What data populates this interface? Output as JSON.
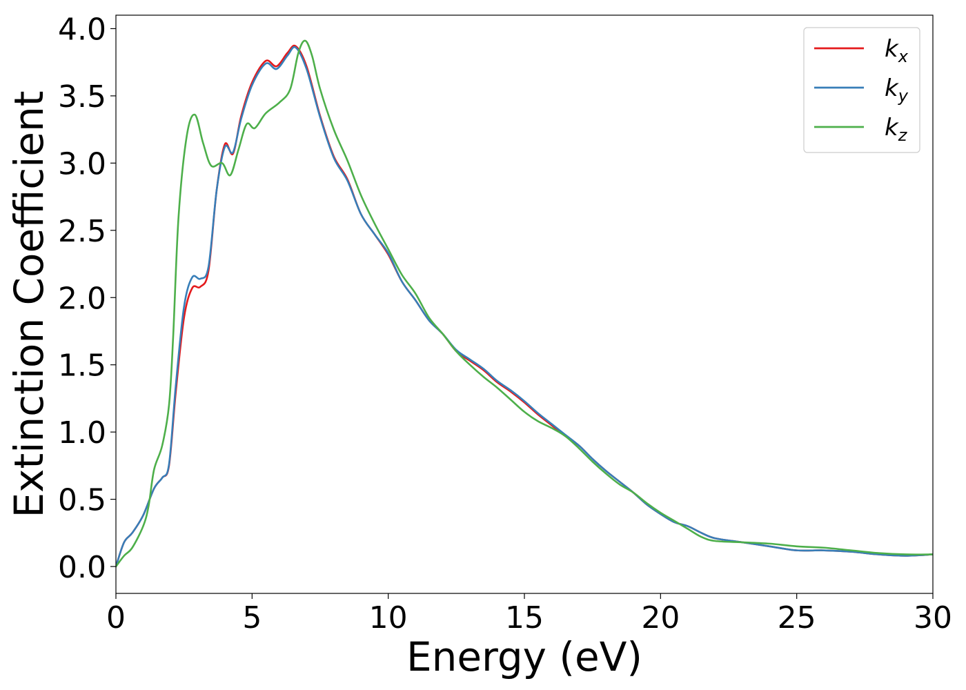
{
  "chart_data": {
    "type": "line",
    "xlabel": "Energy (eV)",
    "ylabel": "Extinction Coefficient",
    "xlim": [
      0,
      30
    ],
    "ylim": [
      -0.2,
      4.1
    ],
    "x_ticks": [
      "0",
      "5",
      "10",
      "15",
      "20",
      "25",
      "30"
    ],
    "y_ticks": [
      "0.0",
      "0.5",
      "1.0",
      "1.5",
      "2.0",
      "2.5",
      "3.0",
      "3.5",
      "4.0"
    ],
    "grid": false,
    "legend_position": "top-right",
    "series": [
      {
        "name": "k",
        "subscript": "x",
        "color": "#e41a1c",
        "points": [
          [
            0,
            0
          ],
          [
            0.3,
            0.18
          ],
          [
            0.6,
            0.25
          ],
          [
            1.0,
            0.38
          ],
          [
            1.4,
            0.58
          ],
          [
            1.7,
            0.66
          ],
          [
            1.95,
            0.75
          ],
          [
            2.2,
            1.3
          ],
          [
            2.5,
            1.85
          ],
          [
            2.8,
            2.07
          ],
          [
            3.1,
            2.08
          ],
          [
            3.4,
            2.2
          ],
          [
            3.7,
            2.8
          ],
          [
            4.0,
            3.14
          ],
          [
            4.3,
            3.07
          ],
          [
            4.6,
            3.35
          ],
          [
            5.0,
            3.6
          ],
          [
            5.5,
            3.76
          ],
          [
            5.9,
            3.72
          ],
          [
            6.3,
            3.82
          ],
          [
            6.6,
            3.87
          ],
          [
            7.0,
            3.72
          ],
          [
            7.5,
            3.35
          ],
          [
            8.0,
            3.05
          ],
          [
            8.5,
            2.88
          ],
          [
            9.0,
            2.62
          ],
          [
            9.5,
            2.47
          ],
          [
            10.0,
            2.32
          ],
          [
            10.5,
            2.12
          ],
          [
            11.0,
            1.98
          ],
          [
            11.5,
            1.83
          ],
          [
            12.0,
            1.73
          ],
          [
            12.5,
            1.6
          ],
          [
            13.0,
            1.53
          ],
          [
            13.5,
            1.46
          ],
          [
            14.0,
            1.37
          ],
          [
            14.5,
            1.3
          ],
          [
            15.0,
            1.22
          ],
          [
            15.5,
            1.13
          ],
          [
            16.0,
            1.05
          ],
          [
            16.5,
            0.97
          ],
          [
            17.0,
            0.9
          ],
          [
            17.5,
            0.8
          ],
          [
            18.0,
            0.71
          ],
          [
            18.5,
            0.63
          ],
          [
            19.0,
            0.55
          ],
          [
            19.5,
            0.46
          ],
          [
            20.0,
            0.39
          ],
          [
            20.5,
            0.33
          ],
          [
            21.0,
            0.3
          ],
          [
            21.5,
            0.25
          ],
          [
            22.0,
            0.21
          ],
          [
            23.0,
            0.18
          ],
          [
            24.0,
            0.15
          ],
          [
            25.0,
            0.12
          ],
          [
            26.0,
            0.12
          ],
          [
            27.0,
            0.11
          ],
          [
            28.0,
            0.09
          ],
          [
            29.0,
            0.08
          ],
          [
            30.0,
            0.09
          ]
        ]
      },
      {
        "name": "k",
        "subscript": "y",
        "color": "#377eb8",
        "points": [
          [
            0,
            0
          ],
          [
            0.3,
            0.18
          ],
          [
            0.6,
            0.25
          ],
          [
            1.0,
            0.38
          ],
          [
            1.4,
            0.58
          ],
          [
            1.7,
            0.66
          ],
          [
            1.95,
            0.76
          ],
          [
            2.2,
            1.35
          ],
          [
            2.5,
            1.93
          ],
          [
            2.8,
            2.15
          ],
          [
            3.1,
            2.14
          ],
          [
            3.4,
            2.23
          ],
          [
            3.7,
            2.8
          ],
          [
            4.0,
            3.12
          ],
          [
            4.3,
            3.08
          ],
          [
            4.6,
            3.33
          ],
          [
            5.0,
            3.58
          ],
          [
            5.5,
            3.74
          ],
          [
            5.9,
            3.7
          ],
          [
            6.3,
            3.8
          ],
          [
            6.6,
            3.86
          ],
          [
            7.0,
            3.7
          ],
          [
            7.5,
            3.34
          ],
          [
            8.0,
            3.04
          ],
          [
            8.5,
            2.87
          ],
          [
            9.0,
            2.62
          ],
          [
            9.5,
            2.47
          ],
          [
            10.0,
            2.33
          ],
          [
            10.5,
            2.12
          ],
          [
            11.0,
            1.98
          ],
          [
            11.5,
            1.83
          ],
          [
            12.0,
            1.73
          ],
          [
            12.5,
            1.61
          ],
          [
            13.0,
            1.54
          ],
          [
            13.5,
            1.47
          ],
          [
            14.0,
            1.38
          ],
          [
            14.5,
            1.31
          ],
          [
            15.0,
            1.23
          ],
          [
            15.5,
            1.14
          ],
          [
            16.0,
            1.06
          ],
          [
            16.5,
            0.98
          ],
          [
            17.0,
            0.9
          ],
          [
            17.5,
            0.8
          ],
          [
            18.0,
            0.71
          ],
          [
            18.5,
            0.63
          ],
          [
            19.0,
            0.55
          ],
          [
            19.5,
            0.46
          ],
          [
            20.0,
            0.39
          ],
          [
            20.5,
            0.33
          ],
          [
            21.0,
            0.3
          ],
          [
            21.5,
            0.25
          ],
          [
            22.0,
            0.21
          ],
          [
            23.0,
            0.18
          ],
          [
            24.0,
            0.15
          ],
          [
            25.0,
            0.12
          ],
          [
            26.0,
            0.12
          ],
          [
            27.0,
            0.11
          ],
          [
            28.0,
            0.09
          ],
          [
            29.0,
            0.08
          ],
          [
            30.0,
            0.09
          ]
        ]
      },
      {
        "name": "k",
        "subscript": "z",
        "color": "#4daf4a",
        "points": [
          [
            0,
            0
          ],
          [
            0.3,
            0.08
          ],
          [
            0.6,
            0.14
          ],
          [
            1.0,
            0.3
          ],
          [
            1.2,
            0.45
          ],
          [
            1.4,
            0.72
          ],
          [
            1.7,
            0.9
          ],
          [
            1.95,
            1.2
          ],
          [
            2.1,
            1.7
          ],
          [
            2.3,
            2.6
          ],
          [
            2.6,
            3.2
          ],
          [
            2.9,
            3.36
          ],
          [
            3.2,
            3.15
          ],
          [
            3.5,
            2.98
          ],
          [
            3.9,
            3.0
          ],
          [
            4.2,
            2.91
          ],
          [
            4.5,
            3.1
          ],
          [
            4.8,
            3.29
          ],
          [
            5.1,
            3.26
          ],
          [
            5.5,
            3.37
          ],
          [
            6.0,
            3.45
          ],
          [
            6.4,
            3.55
          ],
          [
            6.7,
            3.82
          ],
          [
            6.95,
            3.91
          ],
          [
            7.2,
            3.8
          ],
          [
            7.5,
            3.55
          ],
          [
            8.0,
            3.25
          ],
          [
            8.5,
            3.02
          ],
          [
            9.0,
            2.76
          ],
          [
            9.5,
            2.55
          ],
          [
            10.0,
            2.36
          ],
          [
            10.5,
            2.17
          ],
          [
            11.0,
            2.03
          ],
          [
            11.5,
            1.85
          ],
          [
            12.0,
            1.73
          ],
          [
            12.5,
            1.6
          ],
          [
            13.0,
            1.5
          ],
          [
            13.5,
            1.41
          ],
          [
            14.0,
            1.33
          ],
          [
            14.5,
            1.24
          ],
          [
            15.0,
            1.15
          ],
          [
            15.5,
            1.08
          ],
          [
            16.0,
            1.03
          ],
          [
            16.5,
            0.97
          ],
          [
            17.0,
            0.88
          ],
          [
            17.5,
            0.78
          ],
          [
            18.0,
            0.69
          ],
          [
            18.5,
            0.61
          ],
          [
            19.0,
            0.55
          ],
          [
            19.5,
            0.47
          ],
          [
            20.0,
            0.4
          ],
          [
            20.5,
            0.34
          ],
          [
            21.0,
            0.28
          ],
          [
            21.5,
            0.22
          ],
          [
            22.0,
            0.19
          ],
          [
            23.0,
            0.18
          ],
          [
            24.0,
            0.17
          ],
          [
            25.0,
            0.15
          ],
          [
            26.0,
            0.14
          ],
          [
            27.0,
            0.12
          ],
          [
            28.0,
            0.1
          ],
          [
            29.0,
            0.09
          ],
          [
            30.0,
            0.09
          ]
        ]
      }
    ]
  }
}
